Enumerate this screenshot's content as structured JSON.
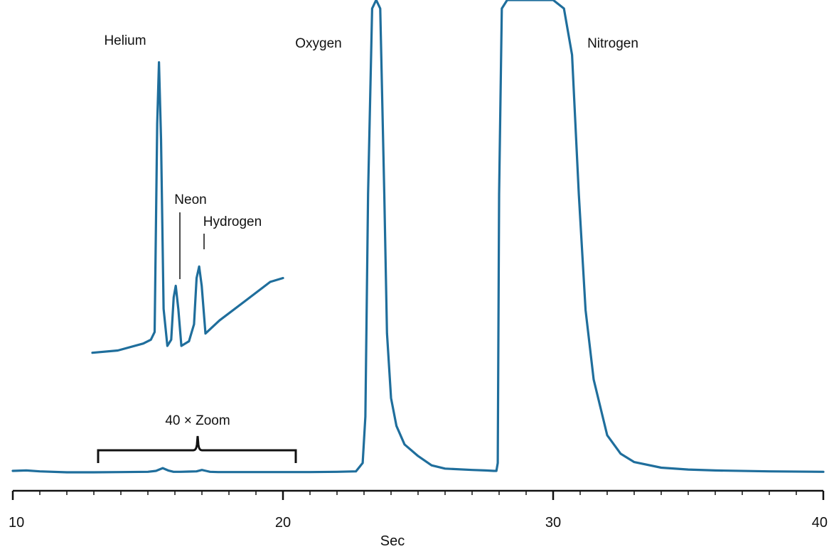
{
  "colors": {
    "trace": "#1f6e9c",
    "axis": "#111111",
    "background": "#ffffff"
  },
  "chart_data": {
    "type": "line",
    "title": "",
    "xlabel": "Sec",
    "ylabel": "",
    "xlim": [
      10,
      40
    ],
    "xticks": [
      10,
      20,
      30,
      40
    ],
    "grid": false,
    "legend": "none",
    "series": [
      {
        "x": [
          10,
          10.5,
          11,
          12,
          13,
          14,
          15,
          15.3,
          15.55,
          15.75,
          15.95,
          16.2,
          16.5,
          16.8,
          17.0,
          17.15,
          17.3,
          17.6,
          18,
          19,
          20,
          21,
          22,
          22.7,
          22.95,
          23.05,
          23.15,
          23.3,
          23.45,
          23.6,
          23.75,
          23.85,
          24.0,
          24.2,
          24.5,
          25.0,
          25.5,
          26,
          27,
          27.5,
          27.8,
          27.9,
          27.95,
          28.0,
          28.1,
          28.3,
          29,
          30,
          30.4,
          30.7,
          30.95,
          31.2,
          31.5,
          32,
          32.5,
          33,
          34,
          35,
          36,
          38,
          40
        ],
        "y": [
          0.3,
          0.4,
          0.2,
          0.0,
          0.0,
          0.05,
          0.1,
          0.3,
          0.9,
          0.4,
          0.1,
          0.1,
          0.15,
          0.2,
          0.5,
          0.3,
          0.1,
          0.05,
          0.05,
          0.05,
          0.05,
          0.05,
          0.1,
          0.2,
          2.0,
          12.0,
          60,
          100,
          105,
          100,
          60,
          30,
          16,
          10,
          6,
          3.5,
          1.5,
          0.8,
          0.5,
          0.4,
          0.3,
          0.3,
          2.0,
          60,
          100,
          105,
          105,
          105,
          100,
          90,
          60,
          35,
          20,
          8,
          4,
          2.2,
          1.0,
          0.6,
          0.4,
          0.2,
          0.1
        ]
      }
    ],
    "inset": {
      "label": "40 × Zoom",
      "x_range": [
        13,
        20.5
      ],
      "trace_y": [
        [
          13.0,
          0.3
        ],
        [
          14.0,
          0.6
        ],
        [
          15.0,
          1.5
        ],
        [
          15.3,
          2.0
        ],
        [
          15.45,
          3.0
        ],
        [
          15.55,
          30.0
        ],
        [
          15.62,
          38.0
        ],
        [
          15.7,
          28.0
        ],
        [
          15.8,
          6.0
        ],
        [
          15.95,
          1.2
        ],
        [
          16.1,
          2.0
        ],
        [
          16.2,
          7.5
        ],
        [
          16.28,
          9.0
        ],
        [
          16.38,
          6.0
        ],
        [
          16.5,
          1.2
        ],
        [
          16.8,
          1.8
        ],
        [
          17.0,
          4.0
        ],
        [
          17.1,
          10.0
        ],
        [
          17.2,
          11.5
        ],
        [
          17.3,
          9.0
        ],
        [
          17.45,
          2.8
        ],
        [
          18.0,
          4.5
        ],
        [
          19.0,
          7.0
        ],
        [
          20.0,
          9.5
        ],
        [
          20.5,
          10.0
        ]
      ],
      "annotations": [
        {
          "label": "Helium",
          "peak_x": 15.62
        },
        {
          "label": "Neon",
          "peak_x": 16.28
        },
        {
          "label": "Hydrogen",
          "peak_x": 17.2
        }
      ]
    },
    "annotations": [
      {
        "label": "Oxygen",
        "x": 23.45
      },
      {
        "label": "Nitrogen",
        "x": 29.0
      }
    ]
  }
}
